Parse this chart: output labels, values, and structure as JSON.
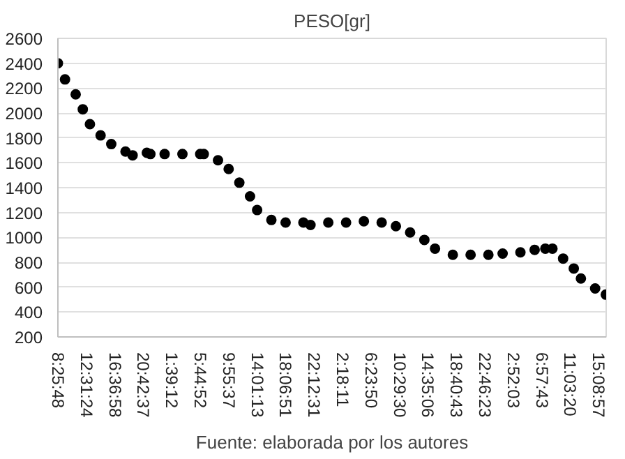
{
  "chart_data": {
    "type": "scatter",
    "title": "PESO[gr]",
    "annotations": [
      "Fuente: elaborada por los autores"
    ],
    "categories": [
      "8:25:48",
      null,
      null,
      null,
      null,
      null,
      null,
      null,
      "12:31:24",
      null,
      null,
      null,
      null,
      null,
      null,
      null,
      "16:36:58",
      null,
      null,
      null,
      null,
      null,
      null,
      null,
      "20:42:37",
      null,
      null,
      null,
      null,
      null,
      null,
      null,
      "1:39:12",
      null,
      null,
      null,
      null,
      null,
      null,
      null,
      "5:44:52",
      null,
      null,
      null,
      null,
      null,
      null,
      null,
      "9:55:37",
      null,
      null,
      null,
      null,
      null,
      null,
      null,
      "14:01:13",
      null,
      null,
      null,
      null,
      null,
      null,
      null,
      "18:06:51",
      null,
      null,
      null,
      null,
      null,
      null,
      null,
      "22:12:31",
      null,
      null,
      null,
      null,
      null,
      null,
      null,
      "2:18:11",
      null,
      null,
      null,
      null,
      null,
      null,
      null,
      "6:23:50",
      null,
      null,
      null,
      null,
      null,
      null,
      null,
      "10:29:30",
      null,
      null,
      null,
      null,
      null,
      null,
      null,
      "14:35:06",
      null,
      null,
      null,
      null,
      null,
      null,
      null,
      "18:40:43",
      null,
      null,
      null,
      null,
      null,
      null,
      null,
      "22:46:23",
      null,
      null,
      null,
      null,
      null,
      null,
      null,
      "2:52:03",
      null,
      null,
      null,
      null,
      null,
      null,
      null,
      "6:57:43",
      null,
      null,
      null,
      null,
      null,
      null,
      null,
      "11:03:20",
      null,
      null,
      null,
      null,
      null,
      null,
      null,
      "15:08:57",
      null,
      null
    ],
    "series": [
      {
        "color": "#000000",
        "values": [
          2400,
          null,
          2270,
          null,
          null,
          2150,
          null,
          2030,
          null,
          1910,
          null,
          null,
          1820,
          null,
          null,
          1750,
          null,
          null,
          null,
          1690,
          null,
          1660,
          null,
          null,
          null,
          1680,
          1670,
          null,
          null,
          null,
          1670,
          null,
          null,
          null,
          null,
          1670,
          null,
          null,
          null,
          null,
          1670,
          1670,
          null,
          null,
          null,
          1620,
          null,
          null,
          1550,
          null,
          null,
          1440,
          null,
          null,
          1330,
          null,
          1220,
          null,
          null,
          null,
          1140,
          null,
          null,
          null,
          1120,
          null,
          null,
          null,
          null,
          1120,
          null,
          1100,
          null,
          null,
          null,
          null,
          1120,
          null,
          null,
          null,
          null,
          1120,
          null,
          null,
          null,
          null,
          1130,
          null,
          null,
          null,
          null,
          1120,
          null,
          null,
          null,
          1090,
          null,
          null,
          null,
          1040,
          null,
          null,
          null,
          980,
          null,
          null,
          910,
          null,
          null,
          null,
          null,
          860,
          null,
          null,
          null,
          null,
          860,
          null,
          null,
          null,
          null,
          860,
          null,
          null,
          null,
          870,
          null,
          null,
          null,
          null,
          880,
          null,
          null,
          null,
          900,
          null,
          null,
          910,
          null,
          910,
          null,
          null,
          830,
          null,
          null,
          750,
          null,
          670,
          null,
          null,
          null,
          590,
          null,
          null,
          540
        ]
      }
    ],
    "ylim": [
      200,
      2600
    ],
    "yticks": [
      200,
      400,
      600,
      800,
      1000,
      1200,
      1400,
      1600,
      1800,
      2000,
      2200,
      2400,
      2600
    ],
    "grid": "y",
    "marker": "circle"
  }
}
